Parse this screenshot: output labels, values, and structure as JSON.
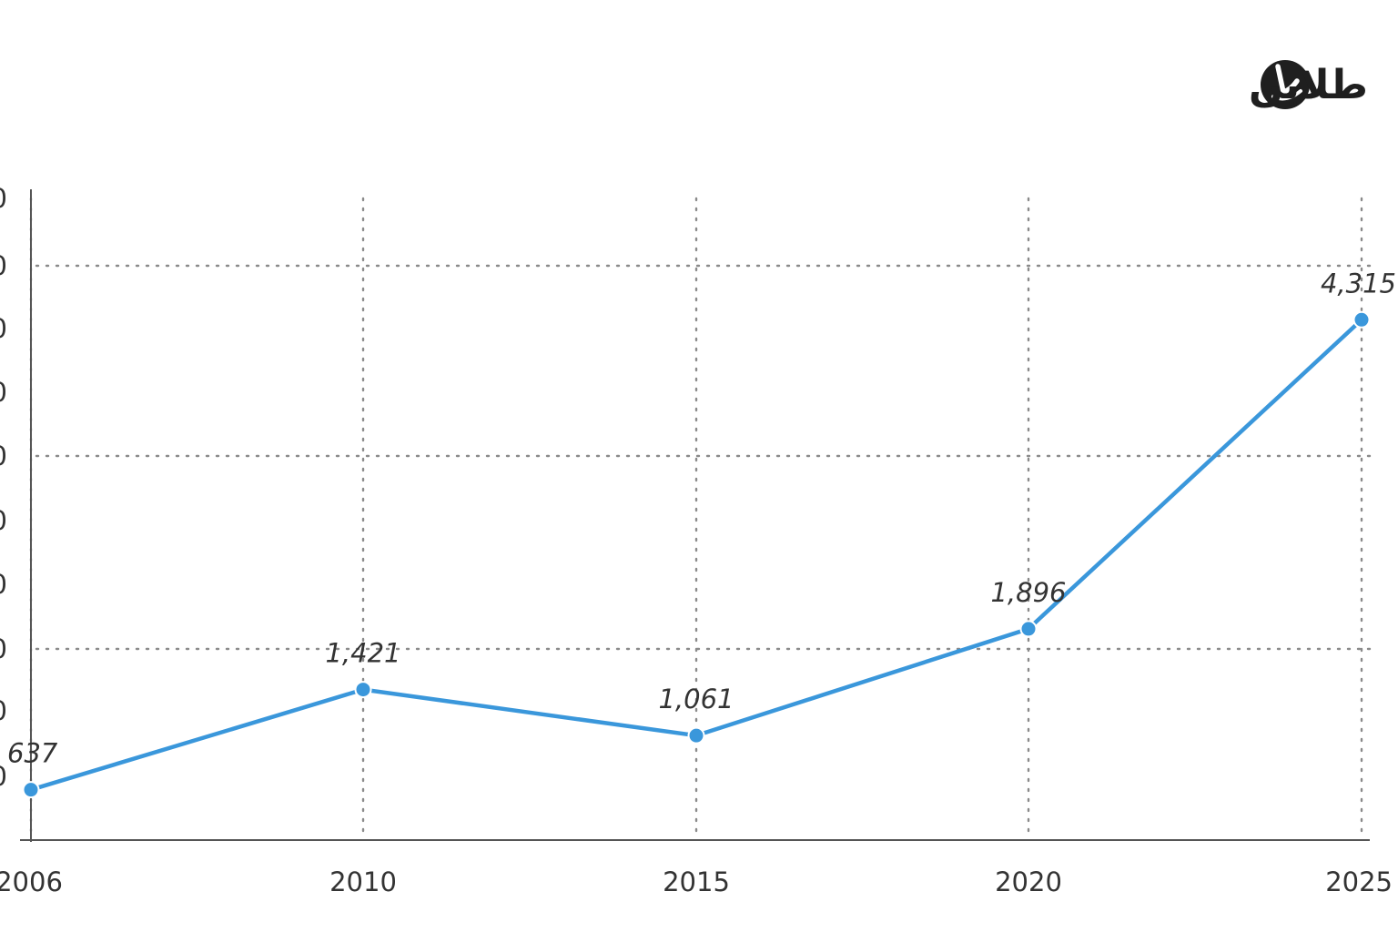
{
  "logo": {
    "text": "طلاین",
    "color": "#1f1f1f"
  },
  "chart_data": {
    "type": "line",
    "x": [
      "2006",
      "2010",
      "2015",
      "2020",
      "2025"
    ],
    "values": [
      637,
      1421,
      1061,
      1896,
      4315
    ],
    "data_labels": [
      "637",
      "1,421",
      "1,061",
      "1,896",
      "4,315"
    ],
    "x_tick_labels": [
      "2006",
      "2010",
      "2015",
      "2020",
      "2025"
    ],
    "y_tick_labels": [
      "0",
      "0",
      "0",
      "0",
      "0",
      "0",
      "0",
      "0",
      "0",
      "0"
    ],
    "ylim": [
      0,
      5000
    ],
    "grid": true,
    "line_color": "#3a97db"
  }
}
